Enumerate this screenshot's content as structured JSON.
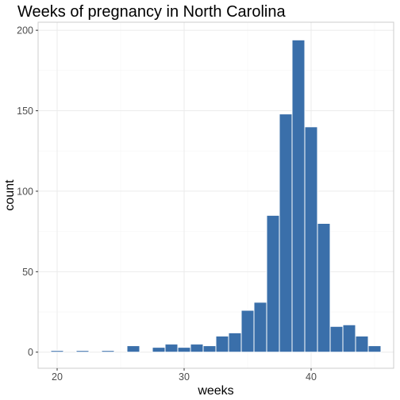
{
  "chart_data": {
    "type": "bar",
    "title": "Weeks of pregnancy in North Carolina",
    "xlabel": "weeks",
    "ylabel": "count",
    "xlim": [
      18.5,
      46.5
    ],
    "ylim": [
      -10,
      205
    ],
    "x_ticks": [
      20,
      30,
      40
    ],
    "y_ticks": [
      0,
      50,
      100,
      150,
      200
    ],
    "bin_width": 1,
    "bar_color": "#3a6faa",
    "grid": true,
    "bins": [
      {
        "center": 20,
        "count": 1
      },
      {
        "center": 22,
        "count": 1
      },
      {
        "center": 24,
        "count": 1
      },
      {
        "center": 26,
        "count": 4
      },
      {
        "center": 28,
        "count": 3
      },
      {
        "center": 29,
        "count": 5
      },
      {
        "center": 30,
        "count": 3
      },
      {
        "center": 31,
        "count": 5
      },
      {
        "center": 32,
        "count": 4
      },
      {
        "center": 33,
        "count": 10
      },
      {
        "center": 34,
        "count": 12
      },
      {
        "center": 35,
        "count": 26
      },
      {
        "center": 36,
        "count": 31
      },
      {
        "center": 37,
        "count": 85
      },
      {
        "center": 38,
        "count": 148
      },
      {
        "center": 39,
        "count": 194
      },
      {
        "center": 40,
        "count": 140
      },
      {
        "center": 41,
        "count": 80
      },
      {
        "center": 42,
        "count": 16
      },
      {
        "center": 43,
        "count": 17
      },
      {
        "center": 44,
        "count": 10
      },
      {
        "center": 45,
        "count": 4
      }
    ]
  }
}
